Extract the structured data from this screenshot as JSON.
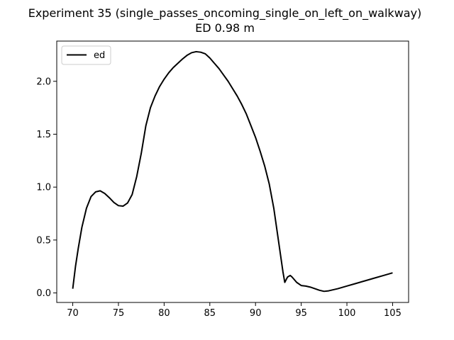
{
  "chart_data": {
    "type": "line",
    "title": "Experiment 35 (single_passes_oncoming_single_on_left_on_walkway)",
    "subtitle": "ED 0.98 m",
    "xlabel": "",
    "ylabel": "",
    "xlim": [
      68.25,
      106.75
    ],
    "ylim": [
      -0.09,
      2.38
    ],
    "xticks": [
      70,
      75,
      80,
      85,
      90,
      95,
      100,
      105
    ],
    "yticks": [
      0.0,
      0.5,
      1.0,
      1.5,
      2.0
    ],
    "xtick_labels": [
      "70",
      "75",
      "80",
      "85",
      "90",
      "95",
      "100",
      "105"
    ],
    "ytick_labels": [
      "0.0",
      "0.5",
      "1.0",
      "1.5",
      "2.0"
    ],
    "grid": false,
    "legend": {
      "placement": "upper-left",
      "entries": [
        "ed"
      ]
    },
    "series": [
      {
        "name": "ed",
        "color": "#000000",
        "x": [
          70.0,
          70.3,
          70.6,
          71.0,
          71.5,
          72.0,
          72.5,
          73.0,
          73.5,
          74.0,
          74.5,
          75.0,
          75.5,
          76.0,
          76.5,
          77.0,
          77.5,
          78.0,
          78.5,
          79.0,
          79.5,
          80.0,
          80.5,
          81.0,
          81.5,
          82.0,
          82.5,
          83.0,
          83.5,
          84.0,
          84.5,
          85.0,
          85.5,
          86.0,
          86.5,
          87.0,
          87.5,
          88.0,
          88.5,
          89.0,
          89.5,
          90.0,
          90.5,
          91.0,
          91.5,
          92.0,
          92.5,
          93.0,
          93.2,
          93.5,
          93.8,
          94.0,
          94.5,
          95.0,
          95.5,
          96.0,
          96.5,
          97.0,
          97.5,
          98.0,
          98.5,
          99.0,
          100.0,
          101.0,
          102.0,
          103.0,
          104.0,
          105.0
        ],
        "y": [
          0.04,
          0.25,
          0.42,
          0.62,
          0.8,
          0.91,
          0.955,
          0.965,
          0.94,
          0.9,
          0.855,
          0.825,
          0.82,
          0.85,
          0.93,
          1.1,
          1.32,
          1.58,
          1.75,
          1.86,
          1.95,
          2.02,
          2.08,
          2.13,
          2.17,
          2.21,
          2.245,
          2.27,
          2.28,
          2.275,
          2.26,
          2.22,
          2.17,
          2.12,
          2.06,
          2.0,
          1.93,
          1.86,
          1.78,
          1.69,
          1.58,
          1.47,
          1.34,
          1.2,
          1.03,
          0.8,
          0.5,
          0.2,
          0.1,
          0.15,
          0.165,
          0.15,
          0.1,
          0.07,
          0.065,
          0.055,
          0.04,
          0.025,
          0.015,
          0.02,
          0.03,
          0.04,
          0.065,
          0.09,
          0.115,
          0.14,
          0.165,
          0.19
        ]
      }
    ]
  }
}
